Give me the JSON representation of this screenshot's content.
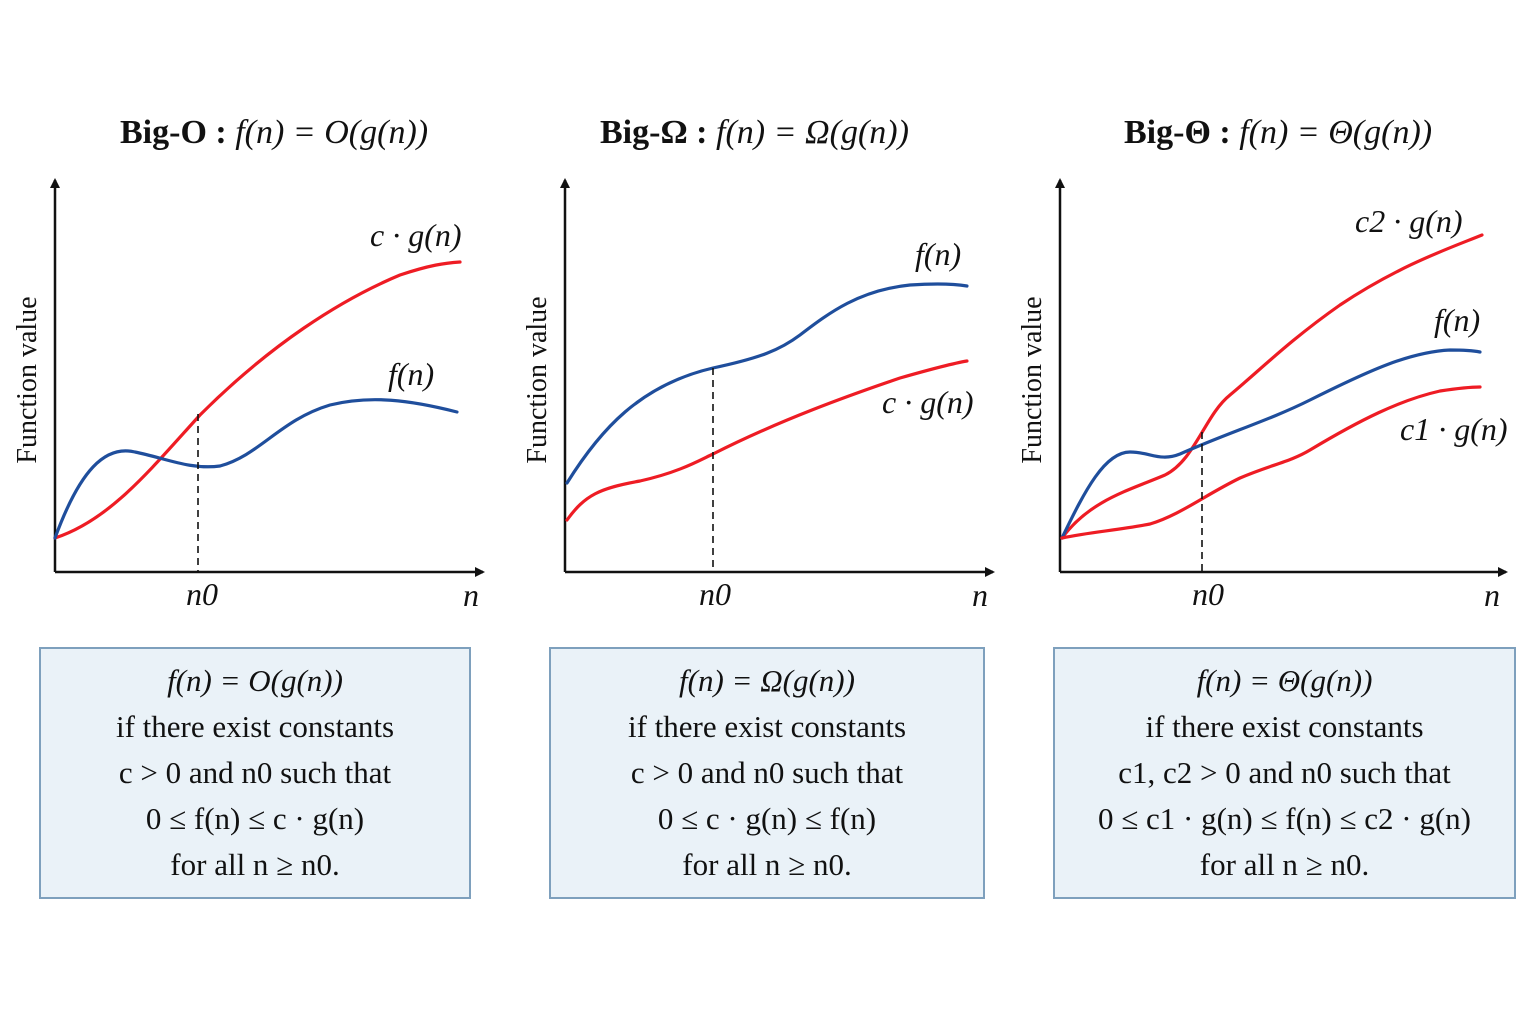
{
  "colors": {
    "f_curve": "#1f4e9c",
    "g_curve": "#ee1c24",
    "box_fill": "#eaf2f8",
    "box_border": "#7ea0bd"
  },
  "axes": {
    "ylabel": "Function value",
    "xlabel": "n",
    "threshold_label": "n0"
  },
  "panels": [
    {
      "id": "big-o",
      "title_bold": "Big-O :",
      "title_math": "f(n) = O(g(n))",
      "curve_labels": {
        "upper": "c · g(n)",
        "lower": "f(n)"
      },
      "definition": {
        "line1": "f(n) = O(g(n))",
        "line2": "if there exist constants",
        "line3": "c > 0 and n0 such that",
        "line4": "0 ≤ f(n) ≤ c · g(n)",
        "line5": "for all n ≥ n0."
      }
    },
    {
      "id": "big-omega",
      "title_bold": "Big-Ω :",
      "title_math": "f(n) = Ω(g(n))",
      "curve_labels": {
        "upper": "f(n)",
        "lower": "c · g(n)"
      },
      "definition": {
        "line1": "f(n) = Ω(g(n))",
        "line2": "if there exist constants",
        "line3": "c > 0 and n0 such that",
        "line4": "0 ≤ c · g(n) ≤ f(n)",
        "line5": "for all n ≥ n0."
      }
    },
    {
      "id": "big-theta",
      "title_bold": "Big-Θ :",
      "title_math": "f(n) = Θ(g(n))",
      "curve_labels": {
        "upper": "c2 · g(n)",
        "middle": "f(n)",
        "lower": "c1 · g(n)"
      },
      "definition": {
        "line1": "f(n) = Θ(g(n))",
        "line2": "if there exist constants",
        "line3": "c1, c2 > 0 and n0 such that",
        "line4": "0 ≤ c1 · g(n) ≤ f(n) ≤ c2 · g(n)",
        "line5": "for all n ≥ n0."
      }
    }
  ]
}
